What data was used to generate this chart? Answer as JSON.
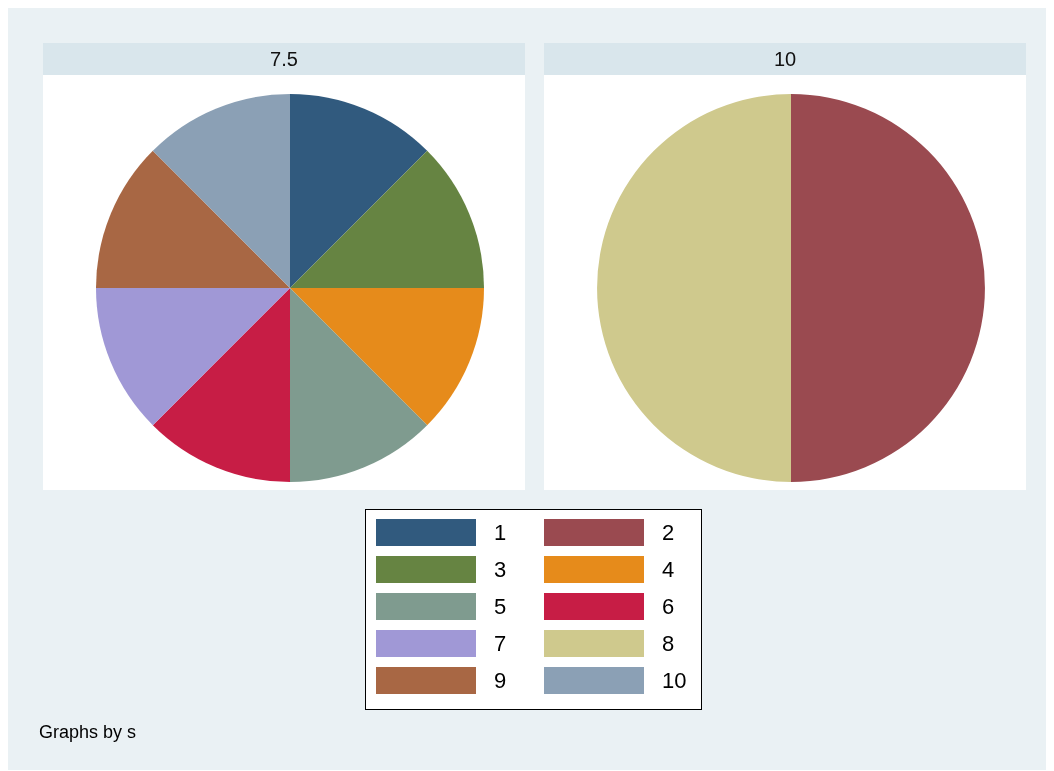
{
  "chart_data": [
    {
      "type": "pie",
      "title": "7.5",
      "categories": [
        "1",
        "3",
        "4",
        "5",
        "6",
        "7",
        "9",
        "10"
      ],
      "values": [
        12.5,
        12.5,
        12.5,
        12.5,
        12.5,
        12.5,
        12.5,
        12.5
      ],
      "colors": [
        "#315a7e",
        "#668442",
        "#e68b1b",
        "#7f9b8f",
        "#c71d45",
        "#a098d6",
        "#a86744",
        "#8ba0b5"
      ],
      "legend": "bottom",
      "annotations": [
        "Graphs by s"
      ]
    },
    {
      "type": "pie",
      "title": "10",
      "categories": [
        "2",
        "8"
      ],
      "values": [
        50,
        50
      ],
      "colors": [
        "#9a4a50",
        "#cfc98d"
      ],
      "legend": "bottom"
    }
  ]
}
